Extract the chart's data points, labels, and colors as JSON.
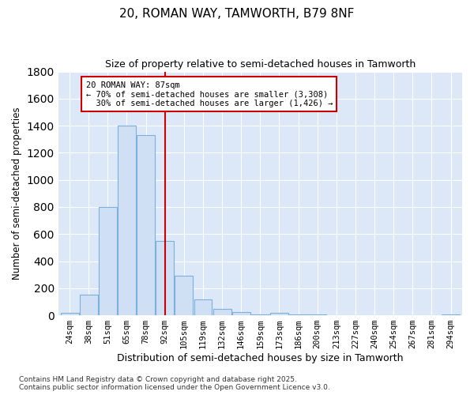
{
  "title1": "20, ROMAN WAY, TAMWORTH, B79 8NF",
  "title2": "Size of property relative to semi-detached houses in Tamworth",
  "xlabel": "Distribution of semi-detached houses by size in Tamworth",
  "ylabel": "Number of semi-detached properties",
  "categories": [
    "24sqm",
    "38sqm",
    "51sqm",
    "65sqm",
    "78sqm",
    "92sqm",
    "105sqm",
    "119sqm",
    "132sqm",
    "146sqm",
    "159sqm",
    "173sqm",
    "186sqm",
    "200sqm",
    "213sqm",
    "227sqm",
    "240sqm",
    "254sqm",
    "267sqm",
    "281sqm",
    "294sqm"
  ],
  "values": [
    20,
    150,
    800,
    1400,
    1330,
    550,
    290,
    120,
    50,
    25,
    5,
    20,
    5,
    5,
    0,
    0,
    0,
    0,
    0,
    0,
    5
  ],
  "bar_color": "#cfe0f5",
  "bar_edge_color": "#7ab0dc",
  "vline_x": 5,
  "vline_color": "#cc0000",
  "annotation_text": "20 ROMAN WAY: 87sqm\n← 70% of semi-detached houses are smaller (3,308)\n  30% of semi-detached houses are larger (1,426) →",
  "annotation_box_color": "#ffffff",
  "annotation_box_edge": "#cc0000",
  "ylim": [
    0,
    1800
  ],
  "yticks": [
    0,
    200,
    400,
    600,
    800,
    1000,
    1200,
    1400,
    1600,
    1800
  ],
  "fig_bg": "#ffffff",
  "plot_bg": "#dce8f8",
  "grid_color": "#ffffff",
  "footnote": "Contains HM Land Registry data © Crown copyright and database right 2025.\nContains public sector information licensed under the Open Government Licence v3.0."
}
